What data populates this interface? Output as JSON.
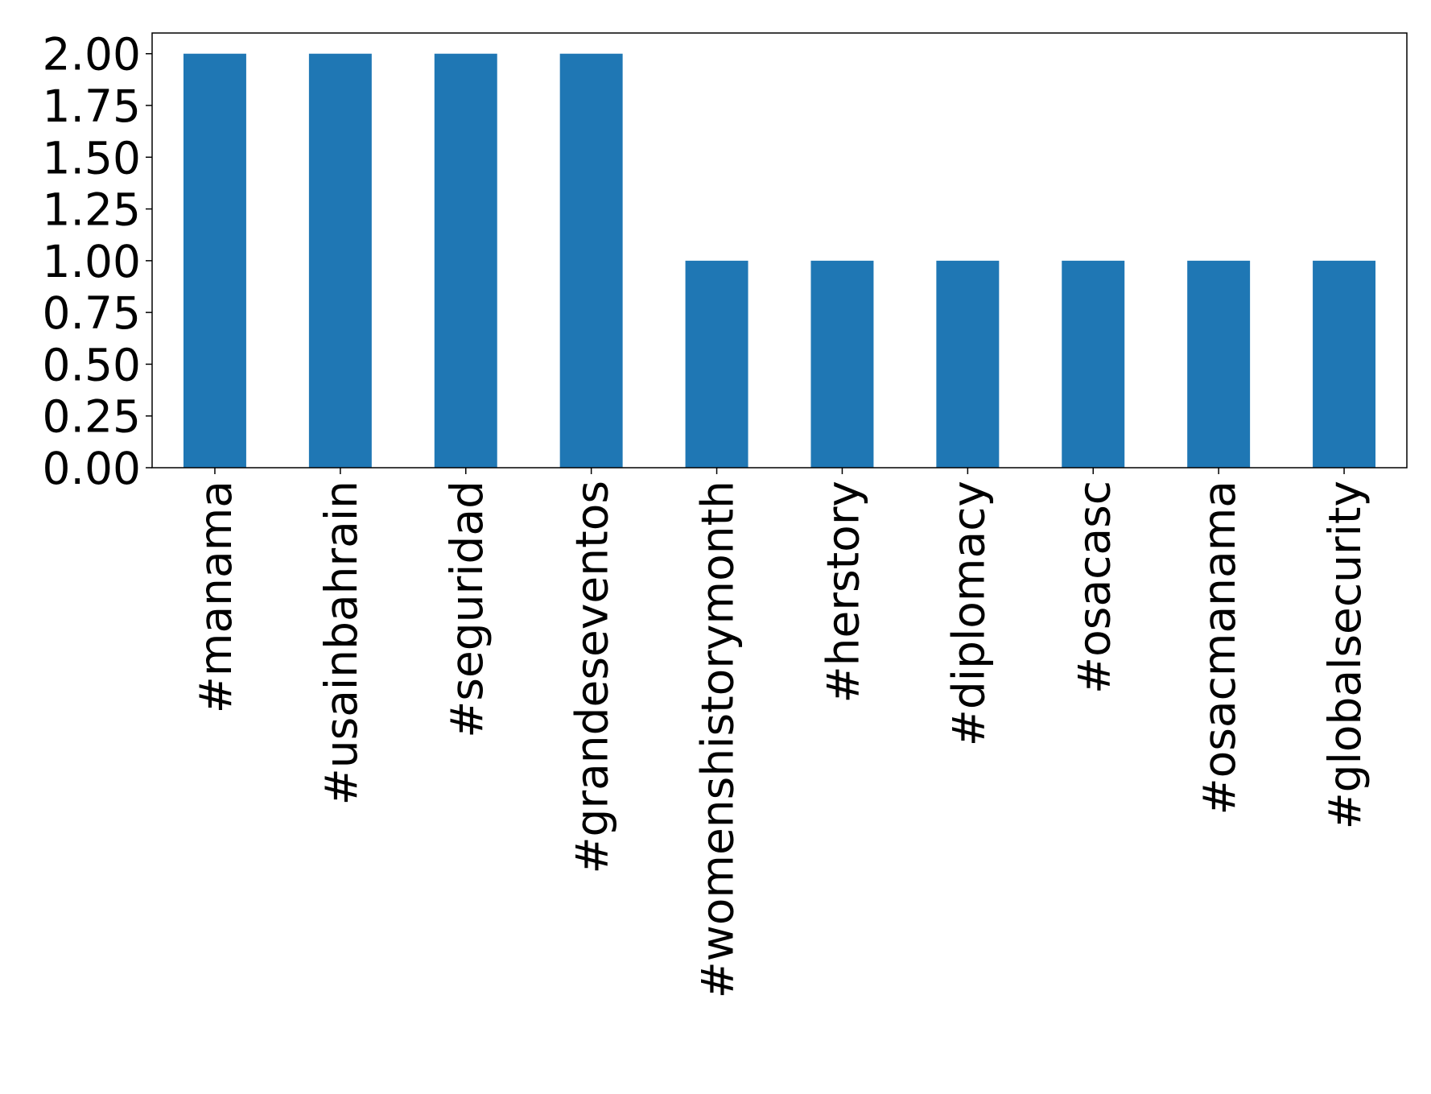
{
  "chart_data": {
    "type": "bar",
    "categories": [
      "#manama",
      "#usainbahrain",
      "#seguridad",
      "#grandeseventos",
      "#womenshistorymonth",
      "#herstory",
      "#diplomacy",
      "#osacasc",
      "#osacmanama",
      "#globalsecurity"
    ],
    "values": [
      2,
      2,
      2,
      2,
      1,
      1,
      1,
      1,
      1,
      1
    ],
    "color": "#1f77b4",
    "ylim": [
      0,
      2.1
    ],
    "yticks": [
      {
        "value": 0,
        "label": "0.00"
      },
      {
        "value": 0.25,
        "label": "0.25"
      },
      {
        "value": 0.5,
        "label": "0.50"
      },
      {
        "value": 0.75,
        "label": "0.75"
      },
      {
        "value": 1,
        "label": "1.00"
      },
      {
        "value": 1.25,
        "label": "1.25"
      },
      {
        "value": 1.5,
        "label": "1.50"
      },
      {
        "value": 1.75,
        "label": "1.75"
      },
      {
        "value": 2,
        "label": "2.00"
      }
    ],
    "grid": false
  }
}
